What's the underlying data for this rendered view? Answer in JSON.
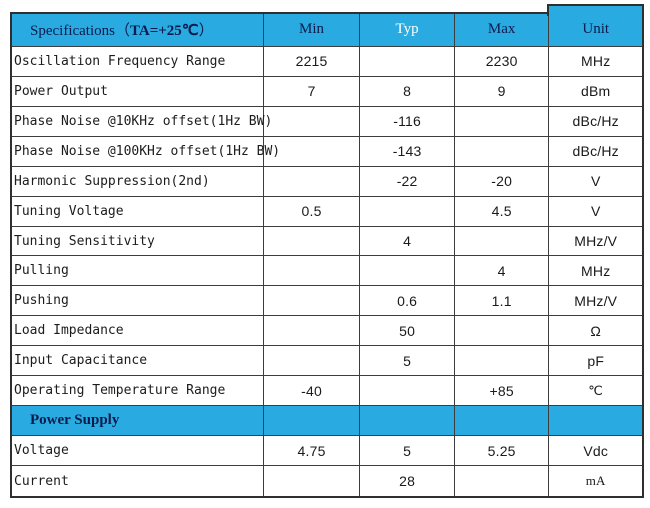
{
  "colors": {
    "accent_blue": "#29abe2",
    "outer_border": "#2f2f2f",
    "grid_line": "#3d3d3d",
    "header_text": "#0e1b4d",
    "typ_header_text": "#ffffff",
    "body_text": "#1c1c1c"
  },
  "table": {
    "header": {
      "spec_prefix": "Specifications（",
      "spec_bold": "TA=+25℃",
      "spec_suffix": "）",
      "columns": [
        "Min",
        "Typ",
        "Max",
        "Unit"
      ]
    },
    "rows": [
      {
        "type": "data",
        "name": "Oscillation Frequency Range",
        "min": "2215",
        "typ": "",
        "max": "2230",
        "unit": "MHz"
      },
      {
        "type": "data",
        "name": "Power Output",
        "min": "7",
        "typ": "8",
        "max": "9",
        "unit": "dBm"
      },
      {
        "type": "data",
        "name": "Phase Noise @10KHz offset(1Hz BW)",
        "min": "",
        "typ": "-116",
        "max": "",
        "unit": "dBc/Hz"
      },
      {
        "type": "data",
        "name": "Phase Noise @100KHz offset(1Hz BW)",
        "min": "",
        "typ": "-143",
        "max": "",
        "unit": "dBc/Hz"
      },
      {
        "type": "data",
        "name": "Harmonic Suppression(2nd)",
        "min": "",
        "typ": "-22",
        "max": "-20",
        "unit": "V"
      },
      {
        "type": "data",
        "name": "Tuning Voltage",
        "min": "0.5",
        "typ": "",
        "max": "4.5",
        "unit": "V"
      },
      {
        "type": "data",
        "name": "Tuning Sensitivity",
        "min": "",
        "typ": "4",
        "max": "",
        "unit": "MHz/V"
      },
      {
        "type": "data",
        "name": "Pulling",
        "min": "",
        "typ": "",
        "max": "4",
        "unit": "MHz"
      },
      {
        "type": "data",
        "name": "Pushing",
        "min": "",
        "typ": "0.6",
        "max": "1.1",
        "unit": "MHz/V"
      },
      {
        "type": "data",
        "name": "Load Impedance",
        "min": "",
        "typ": "50",
        "max": "",
        "unit": "Ω"
      },
      {
        "type": "data",
        "name": "Input Capacitance",
        "min": "",
        "typ": "5",
        "max": "",
        "unit": "pF"
      },
      {
        "type": "data",
        "name": "Operating Temperature Range",
        "min": "-40",
        "typ": "",
        "max": "+85",
        "unit": "℃",
        "unit_serif": true
      },
      {
        "type": "section",
        "name": "Power Supply"
      },
      {
        "type": "data",
        "name": "Voltage",
        "min": "4.75",
        "typ": "5",
        "max": "5.25",
        "unit": "Vdc"
      },
      {
        "type": "data",
        "name": "Current",
        "min": "",
        "typ": "28",
        "max": "",
        "unit": "mA",
        "unit_serif": true
      }
    ]
  }
}
